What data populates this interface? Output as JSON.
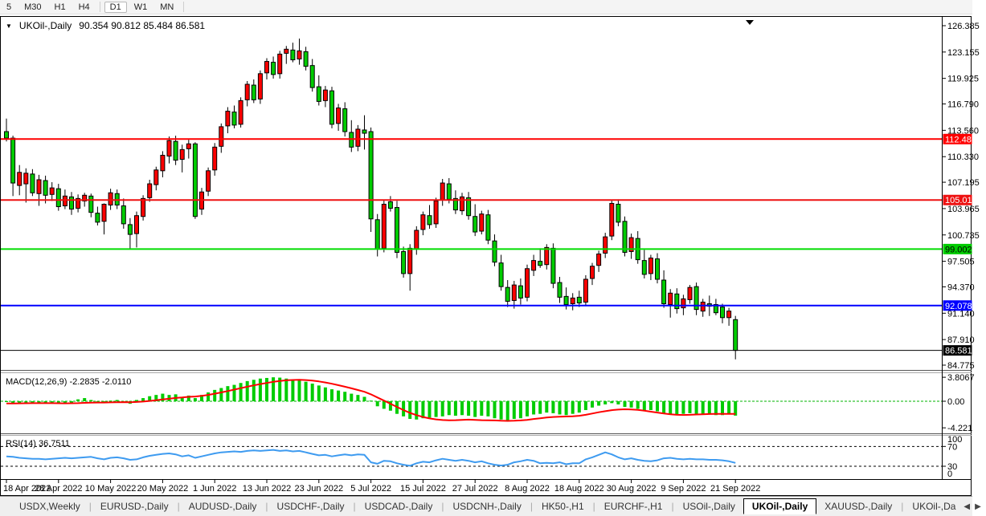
{
  "toolbar": {
    "timeframes": [
      "5",
      "M30",
      "H1",
      "H4",
      "D1",
      "W1",
      "MN"
    ],
    "selected": "D1"
  },
  "chart": {
    "symbol_label": "UKOil-,Daily",
    "ohlc_text": "90.354 90.812 85.484 86.581",
    "dropdown_icon": "▼",
    "scroll_marker_icon": "▼"
  },
  "indicators": {
    "macd_label": "MACD(12,26,9) -2.2835 -2.0110",
    "rsi_label": "RSI(14) 36.7511"
  },
  "chart_data": [
    {
      "type": "candlestick",
      "symbol": "UKOil-",
      "timeframe": "Daily",
      "current_ohlc": {
        "open": 90.354,
        "high": 90.812,
        "low": 85.484,
        "close": 86.581
      },
      "up_color": "#ff0000",
      "down_color": "#00cc00",
      "wick_color": "#000000",
      "ylim": [
        84.775,
        126.385
      ],
      "y_ticks": [
        "126.385",
        "123.155",
        "119.925",
        "116.790",
        "113.560",
        "110.330",
        "107.195",
        "103.965",
        "100.735",
        "97.505",
        "94.370",
        "91.140",
        "87.910",
        "84.775"
      ],
      "x_tick_labels": [
        "18 Apr 2022",
        "28 Apr 2022",
        "10 May 2022",
        "20 May 2022",
        "1 Jun 2022",
        "13 Jun 2022",
        "23 Jun 2022",
        "5 Jul 2022",
        "15 Jul 2022",
        "27 Jul 2022",
        "8 Aug 2022",
        "18 Aug 2022",
        "30 Aug 2022",
        "9 Sep 2022",
        "21 Sep 2022"
      ],
      "x_tick_indices": [
        0,
        8,
        16,
        24,
        32,
        40,
        48,
        56,
        64,
        72,
        80,
        88,
        96,
        104,
        112
      ],
      "hlines": [
        {
          "price": 112.486,
          "label": "112.486",
          "color": "#ff0000",
          "width": 2,
          "badge_bg": "#ff0000",
          "badge_fg": "#ffffff"
        },
        {
          "price": 105.015,
          "label": "105.015",
          "color": "#ee1111",
          "width": 2,
          "badge_bg": "#ee1111",
          "badge_fg": "#ffffff"
        },
        {
          "price": 99.002,
          "label": "99.002",
          "color": "#00dd00",
          "width": 2,
          "badge_bg": "#00cc00",
          "badge_fg": "#000000"
        },
        {
          "price": 92.078,
          "label": "92.078",
          "color": "#0000ff",
          "width": 2,
          "badge_bg": "#0000ff",
          "badge_fg": "#ffffff"
        },
        {
          "price": 86.581,
          "label": "86.581",
          "color": "#000000",
          "width": 1,
          "badge_bg": "#000000",
          "badge_fg": "#ffffff"
        }
      ],
      "candles": [
        [
          113.4,
          115.0,
          112.2,
          112.6
        ],
        [
          112.6,
          112.9,
          105.5,
          107.1
        ],
        [
          106.8,
          109.3,
          105.6,
          108.4
        ],
        [
          107.0,
          108.9,
          104.7,
          108.3
        ],
        [
          108.2,
          108.8,
          105.5,
          105.9
        ],
        [
          105.8,
          108.1,
          104.3,
          107.5
        ],
        [
          107.4,
          108.0,
          104.6,
          105.6
        ],
        [
          105.7,
          107.2,
          104.9,
          106.5
        ],
        [
          106.4,
          107.0,
          103.7,
          104.2
        ],
        [
          104.3,
          106.3,
          103.9,
          105.5
        ],
        [
          105.4,
          106.0,
          103.2,
          103.9
        ],
        [
          104.0,
          105.7,
          103.5,
          105.2
        ],
        [
          104.9,
          105.9,
          104.2,
          105.6
        ],
        [
          105.5,
          105.8,
          102.9,
          103.5
        ],
        [
          103.4,
          104.2,
          101.9,
          102.3
        ],
        [
          102.4,
          104.6,
          100.8,
          104.5
        ],
        [
          104.4,
          106.4,
          103.8,
          105.9
        ],
        [
          105.8,
          106.3,
          103.9,
          104.4
        ],
        [
          104.3,
          105.2,
          101.5,
          102.1
        ],
        [
          102.0,
          102.8,
          99.0,
          100.8
        ],
        [
          100.9,
          103.6,
          99.2,
          103.1
        ],
        [
          103.0,
          105.6,
          102.5,
          105.2
        ],
        [
          105.3,
          107.5,
          104.8,
          107.0
        ],
        [
          106.9,
          109.1,
          106.2,
          108.7
        ],
        [
          108.6,
          111.0,
          107.8,
          110.5
        ],
        [
          110.4,
          112.8,
          109.5,
          112.3
        ],
        [
          112.2,
          112.9,
          109.3,
          109.9
        ],
        [
          110.0,
          111.8,
          108.4,
          111.2
        ],
        [
          111.3,
          112.4,
          110.1,
          111.9
        ],
        [
          111.9,
          112.1,
          102.7,
          103.0
        ],
        [
          103.9,
          106.5,
          103.2,
          106.0
        ],
        [
          106.1,
          109.0,
          105.5,
          108.6
        ],
        [
          108.7,
          112.0,
          108.0,
          111.5
        ],
        [
          111.6,
          114.4,
          110.8,
          114.0
        ],
        [
          114.1,
          116.4,
          113.2,
          115.9
        ],
        [
          115.8,
          116.6,
          113.8,
          114.2
        ],
        [
          114.3,
          117.6,
          113.9,
          117.2
        ],
        [
          117.3,
          119.6,
          116.5,
          119.2
        ],
        [
          119.1,
          119.8,
          116.9,
          117.3
        ],
        [
          117.4,
          120.9,
          116.8,
          120.5
        ],
        [
          120.6,
          122.4,
          119.8,
          122.0
        ],
        [
          121.9,
          122.6,
          119.9,
          120.4
        ],
        [
          120.5,
          123.3,
          119.9,
          122.9
        ],
        [
          123.0,
          123.9,
          121.7,
          123.5
        ],
        [
          123.4,
          124.3,
          121.9,
          122.2
        ],
        [
          122.3,
          124.8,
          121.6,
          123.3
        ],
        [
          123.2,
          123.8,
          120.9,
          121.4
        ],
        [
          121.5,
          122.3,
          118.3,
          118.8
        ],
        [
          118.9,
          120.3,
          116.6,
          117.1
        ],
        [
          117.2,
          119.0,
          116.4,
          118.5
        ],
        [
          118.4,
          118.9,
          113.8,
          114.3
        ],
        [
          114.4,
          116.8,
          113.5,
          116.3
        ],
        [
          116.2,
          117.0,
          112.8,
          113.4
        ],
        [
          113.3,
          114.8,
          110.9,
          111.5
        ],
        [
          111.6,
          114.2,
          111.0,
          113.7
        ],
        [
          113.6,
          115.4,
          111.2,
          113.2
        ],
        [
          113.4,
          113.9,
          101.1,
          102.7
        ],
        [
          102.6,
          103.3,
          98.1,
          99.0
        ],
        [
          99.1,
          105.0,
          98.6,
          104.5
        ],
        [
          104.8,
          105.5,
          103.6,
          104.0
        ],
        [
          104.1,
          104.9,
          97.9,
          98.6
        ],
        [
          98.7,
          99.3,
          95.5,
          96.0
        ],
        [
          96.0,
          99.6,
          93.9,
          99.1
        ],
        [
          99.0,
          101.8,
          98.3,
          101.3
        ],
        [
          101.4,
          103.6,
          100.7,
          103.2
        ],
        [
          103.1,
          104.4,
          101.5,
          102.0
        ],
        [
          102.1,
          105.3,
          101.6,
          104.9
        ],
        [
          105.0,
          107.6,
          104.3,
          107.1
        ],
        [
          107.0,
          107.7,
          104.6,
          105.1
        ],
        [
          105.2,
          106.2,
          103.3,
          103.8
        ],
        [
          103.7,
          105.9,
          103.2,
          105.4
        ],
        [
          105.3,
          106.0,
          102.6,
          103.1
        ],
        [
          103.0,
          104.5,
          100.6,
          101.1
        ],
        [
          101.2,
          103.7,
          100.8,
          103.3
        ],
        [
          103.2,
          103.8,
          99.6,
          100.1
        ],
        [
          100.0,
          100.8,
          96.9,
          97.4
        ],
        [
          97.3,
          98.3,
          93.9,
          94.4
        ],
        [
          94.3,
          95.2,
          91.9,
          92.6
        ],
        [
          92.7,
          95.1,
          91.7,
          94.6
        ],
        [
          94.5,
          95.4,
          92.2,
          93.0
        ],
        [
          93.1,
          97.1,
          92.6,
          96.6
        ],
        [
          96.4,
          98.3,
          95.7,
          97.6
        ],
        [
          97.5,
          99.1,
          96.7,
          97.0
        ],
        [
          97.1,
          99.6,
          96.5,
          99.2
        ],
        [
          99.1,
          99.7,
          94.2,
          94.8
        ],
        [
          94.9,
          95.6,
          92.4,
          93.1
        ],
        [
          93.2,
          94.3,
          91.6,
          92.2
        ],
        [
          92.3,
          93.6,
          91.5,
          93.0
        ],
        [
          93.1,
          93.9,
          91.9,
          92.4
        ],
        [
          92.5,
          95.8,
          92.0,
          95.3
        ],
        [
          95.4,
          97.3,
          94.6,
          96.9
        ],
        [
          97.0,
          98.8,
          96.2,
          98.4
        ],
        [
          98.5,
          101.0,
          97.9,
          100.5
        ],
        [
          100.6,
          105.0,
          100.1,
          104.6
        ],
        [
          104.5,
          105.1,
          101.8,
          102.3
        ],
        [
          102.4,
          103.0,
          98.1,
          98.6
        ],
        [
          98.7,
          100.9,
          97.8,
          100.4
        ],
        [
          100.3,
          101.2,
          97.2,
          97.7
        ],
        [
          97.6,
          98.9,
          95.4,
          95.9
        ],
        [
          96.0,
          98.3,
          95.2,
          97.9
        ],
        [
          97.8,
          98.5,
          94.8,
          95.3
        ],
        [
          95.2,
          96.4,
          91.8,
          92.3
        ],
        [
          92.2,
          94.1,
          90.6,
          93.6
        ],
        [
          93.5,
          94.2,
          91.1,
          91.7
        ],
        [
          91.8,
          93.4,
          90.9,
          92.9
        ],
        [
          92.8,
          94.6,
          92.3,
          94.3
        ],
        [
          94.4,
          94.9,
          90.9,
          91.6
        ],
        [
          91.4,
          92.9,
          90.7,
          92.5
        ],
        [
          92.3,
          93.3,
          90.8,
          92.0
        ],
        [
          92.2,
          92.9,
          90.9,
          91.2
        ],
        [
          91.9,
          92.3,
          89.9,
          90.6
        ],
        [
          90.6,
          91.8,
          89.6,
          91.4
        ],
        [
          90.354,
          90.812,
          85.484,
          86.581
        ]
      ]
    },
    {
      "type": "bar",
      "name": "MACD(12,26,9)",
      "ylim": [
        -4.221,
        3.8067
      ],
      "y_ticks": [
        "3.8067",
        "0.00",
        "-4.221"
      ],
      "y_tick_values": [
        3.8067,
        0,
        -4.221
      ],
      "histogram_color": "#00cc00",
      "signal_color": "#ff0000",
      "zero_line": 0,
      "last_values": [
        -2.2835,
        -2.011
      ],
      "values": [
        -0.1,
        -0.3,
        -0.35,
        -0.3,
        -0.25,
        -0.3,
        -0.35,
        -0.3,
        -0.4,
        -0.35,
        -0.2,
        0.3,
        0.5,
        0.2,
        -0.2,
        -0.3,
        0.1,
        0.2,
        -0.1,
        -0.4,
        0.2,
        0.5,
        0.8,
        1.0,
        1.2,
        1.0,
        1.1,
        0.6,
        0.9,
        0.5,
        1.0,
        1.4,
        1.8,
        2.1,
        2.4,
        2.6,
        2.9,
        3.2,
        3.4,
        3.6,
        3.7,
        3.8,
        3.75,
        3.6,
        3.4,
        3.3,
        3.1,
        2.8,
        2.5,
        2.2,
        1.9,
        1.7,
        1.5,
        1.2,
        1.0,
        0.7,
        0.1,
        -0.8,
        -1.2,
        -1.5,
        -2.0,
        -2.4,
        -2.8,
        -2.9,
        -2.7,
        -2.6,
        -2.5,
        -2.4,
        -2.2,
        -2.3,
        -2.2,
        -2.3,
        -2.5,
        -2.3,
        -2.4,
        -2.7,
        -2.9,
        -3.0,
        -2.8,
        -2.7,
        -2.4,
        -2.1,
        -2.0,
        -1.8,
        -1.9,
        -2.1,
        -2.2,
        -2.0,
        -1.8,
        -1.4,
        -1.0,
        -0.7,
        -0.5,
        -0.3,
        -0.5,
        -0.9,
        -1.0,
        -1.2,
        -1.5,
        -1.4,
        -1.6,
        -1.9,
        -2.0,
        -2.1,
        -2.0,
        -1.9,
        -2.1,
        -2.0,
        -2.1,
        -2.2,
        -2.2,
        -2.1,
        -2.2835
      ],
      "signal": [
        -0.35,
        -0.34,
        -0.33,
        -0.32,
        -0.31,
        -0.3,
        -0.3,
        -0.31,
        -0.32,
        -0.33,
        -0.32,
        -0.3,
        -0.26,
        -0.22,
        -0.2,
        -0.2,
        -0.18,
        -0.15,
        -0.14,
        -0.15,
        -0.12,
        -0.05,
        0.05,
        0.15,
        0.28,
        0.4,
        0.52,
        0.6,
        0.7,
        0.75,
        0.85,
        1.0,
        1.2,
        1.4,
        1.62,
        1.85,
        2.08,
        2.3,
        2.52,
        2.72,
        2.9,
        3.08,
        3.22,
        3.32,
        3.38,
        3.4,
        3.36,
        3.28,
        3.15,
        2.98,
        2.78,
        2.55,
        2.3,
        2.05,
        1.78,
        1.5,
        1.1,
        0.6,
        0.1,
        -0.4,
        -0.9,
        -1.4,
        -1.85,
        -2.2,
        -2.5,
        -2.72,
        -2.88,
        -2.98,
        -3.02,
        -3.0,
        -2.95,
        -2.92,
        -2.95,
        -3.0,
        -3.02,
        -3.05,
        -3.1,
        -3.12,
        -3.1,
        -3.05,
        -2.95,
        -2.82,
        -2.7,
        -2.58,
        -2.5,
        -2.45,
        -2.42,
        -2.38,
        -2.3,
        -2.15,
        -1.95,
        -1.75,
        -1.58,
        -1.42,
        -1.32,
        -1.28,
        -1.3,
        -1.38,
        -1.5,
        -1.65,
        -1.8,
        -1.95,
        -2.08,
        -2.15,
        -2.18,
        -2.15,
        -2.1,
        -2.06,
        -2.03,
        -2.01,
        -2.0,
        -2.0,
        -2.011
      ]
    },
    {
      "type": "line",
      "name": "RSI(14)",
      "ylim": [
        0,
        100
      ],
      "y_ticks": [
        "100",
        "70",
        "30",
        "0"
      ],
      "levels": [
        70,
        30
      ],
      "line_color": "#3e9bf0",
      "last_value": 36.7511,
      "values": [
        50,
        49,
        47,
        46,
        45,
        45,
        44,
        45,
        46,
        47,
        46,
        47,
        48,
        49,
        46,
        44,
        47,
        48,
        46,
        43,
        44,
        48,
        51,
        53,
        55,
        56,
        54,
        50,
        52,
        47,
        50,
        53,
        56,
        58,
        59,
        60,
        59,
        61,
        62,
        61,
        62,
        63,
        61,
        62,
        60,
        61,
        58,
        55,
        52,
        53,
        50,
        52,
        54,
        52,
        54,
        53,
        38,
        35,
        41,
        40,
        36,
        33,
        31,
        36,
        39,
        38,
        42,
        45,
        43,
        41,
        43,
        41,
        38,
        40,
        36,
        33,
        31.5,
        33,
        38,
        40,
        43,
        41,
        36,
        37,
        36,
        38,
        34,
        36,
        36,
        44,
        48,
        53,
        58,
        54,
        48,
        44,
        46,
        43,
        41,
        40,
        42,
        46,
        47,
        45,
        44,
        45,
        44,
        44,
        43,
        43,
        42,
        40,
        36.8
      ]
    }
  ],
  "tabs": {
    "items": [
      "USDX,Weekly",
      "EURUSD-,Daily",
      "AUDUSD-,Daily",
      "USDCHF-,Daily",
      "USDCAD-,Daily",
      "USDCNH-,Daily",
      "HK50-,H1",
      "EURCHF-,H1",
      "USOil-,Daily",
      "UKOil-,Daily",
      "XAUUSD-,Daily",
      "UKOil-,Da"
    ],
    "active": "UKOil-,Daily",
    "scroll_left_icon": "◀",
    "scroll_right_icon": "▶"
  }
}
